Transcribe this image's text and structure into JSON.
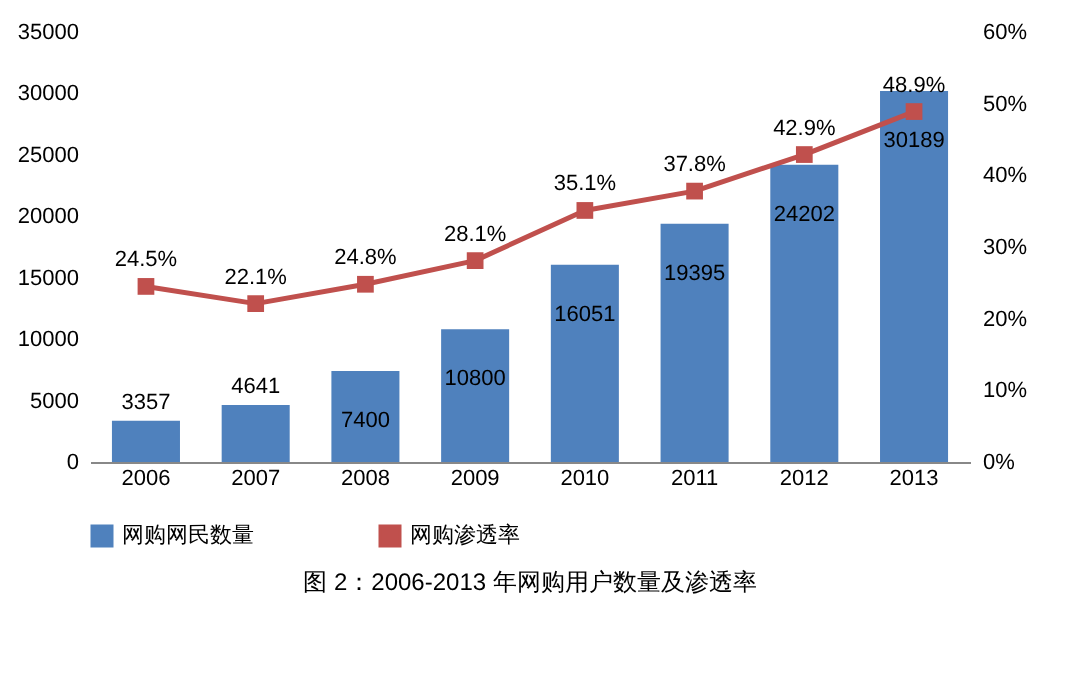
{
  "chart_data": {
    "type": "bar",
    "title": "图 2：2006-2013 年网购用户数量及渗透率",
    "categories": [
      "2006",
      "2007",
      "2008",
      "2009",
      "2010",
      "2011",
      "2012",
      "2013"
    ],
    "series": [
      {
        "name": "网购网民数量",
        "color": "#4f81bd",
        "values": [
          3357,
          4641,
          7400,
          10800,
          16051,
          19395,
          24202,
          30189
        ]
      },
      {
        "name": "网购渗透率",
        "type": "line",
        "axis": "y2",
        "color": "#c0504d",
        "marker": "square",
        "values": [
          24.5,
          22.1,
          24.8,
          28.1,
          35.1,
          37.8,
          42.9,
          48.9
        ],
        "value_labels": [
          "24.5%",
          "22.1%",
          "24.8%",
          "28.1%",
          "35.1%",
          "37.8%",
          "42.9%",
          "48.9%"
        ]
      }
    ],
    "ylim": [
      0,
      35000
    ],
    "yticks": [
      0,
      5000,
      10000,
      15000,
      20000,
      25000,
      30000,
      35000
    ],
    "y2lim": [
      0,
      60
    ],
    "y2ticks": [
      {
        "value": 0,
        "label": "0%"
      },
      {
        "value": 10,
        "label": "10%"
      },
      {
        "value": 20,
        "label": "20%"
      },
      {
        "value": 30,
        "label": "30%"
      },
      {
        "value": 40,
        "label": "40%"
      },
      {
        "value": 50,
        "label": "50%"
      },
      {
        "value": 60,
        "label": "60%"
      }
    ],
    "data_labels": true,
    "legend": "bottom"
  }
}
